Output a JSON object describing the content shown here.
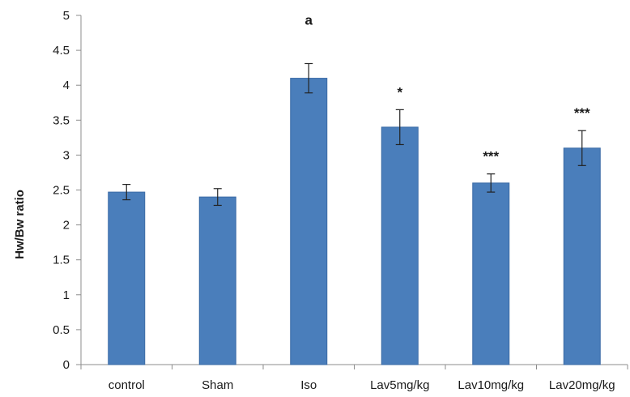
{
  "chart_data": {
    "type": "bar",
    "title": "",
    "xlabel": "",
    "ylabel": "Hw/Bw ratio",
    "ylim": [
      0,
      5
    ],
    "yticks": [
      0,
      0.5,
      1,
      1.5,
      2,
      2.5,
      3,
      3.5,
      4,
      4.5,
      5
    ],
    "ytick_labels": [
      "0",
      "0.5",
      "1",
      "1.5",
      "2",
      "2.5",
      "3",
      "3.5",
      "4",
      "4.5",
      "5"
    ],
    "categories": [
      "control",
      "Sham",
      "Iso",
      "Lav5mg/kg",
      "Lav10mg/kg",
      "Lav20mg/kg"
    ],
    "values": [
      2.47,
      2.4,
      4.1,
      3.4,
      2.6,
      3.1
    ],
    "errors": [
      0.11,
      0.12,
      0.21,
      0.25,
      0.13,
      0.25
    ],
    "annotations": [
      "",
      "",
      "a",
      "*",
      "***",
      "***"
    ],
    "grid": false,
    "legend": "none",
    "bar_color": "#4a7ebb",
    "bar_edge_color": "#3a6aa5"
  }
}
